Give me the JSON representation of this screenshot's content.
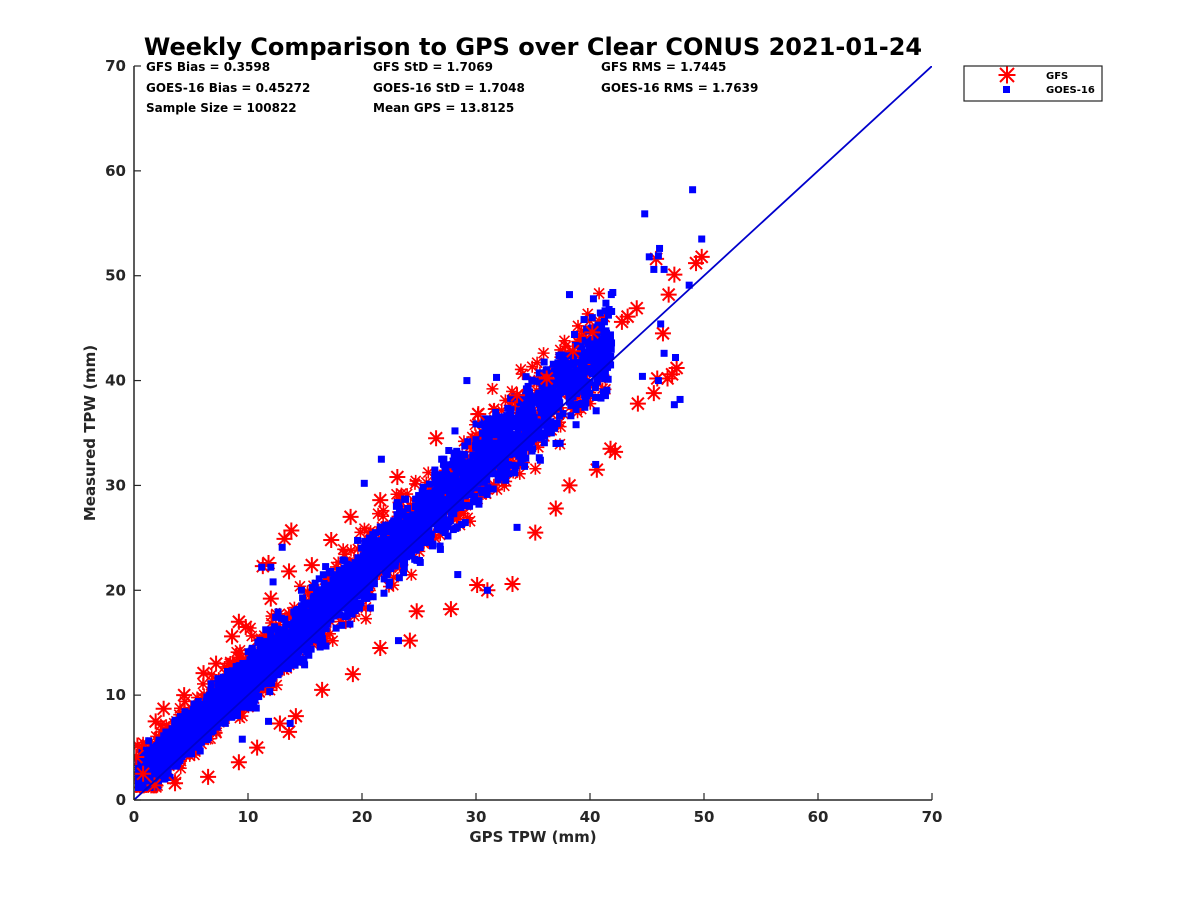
{
  "chart_data": {
    "type": "scatter",
    "title": "Weekly Comparison to GPS over Clear CONUS 2021-01-24",
    "xlabel": "GPS TPW (mm)",
    "ylabel": "Measured TPW (mm)",
    "xlim": [
      0,
      70
    ],
    "ylim": [
      0,
      70
    ],
    "xticks": [
      "0",
      "10",
      "20",
      "30",
      "40",
      "50",
      "60",
      "70"
    ],
    "yticks": [
      "0",
      "10",
      "20",
      "30",
      "40",
      "50",
      "60",
      "70"
    ],
    "grid": false,
    "legend_position": "outside-top-right",
    "stats": [
      [
        "GFS Bias = 0.3598",
        "GFS StD = 1.7069",
        "GFS RMS = 1.7445"
      ],
      [
        "GOES-16 Bias = 0.45272",
        "GOES-16 StD = 1.7048",
        "GOES-16 RMS = 1.7639"
      ],
      [
        "Sample Size = 100822",
        "Mean GPS = 13.8125"
      ]
    ],
    "reference_line": {
      "x": [
        0,
        70
      ],
      "y": [
        0,
        70
      ],
      "color": "#0000cc"
    },
    "series": [
      {
        "name": "GFS",
        "marker": "asterisk",
        "color": "#ff0000",
        "points": [
          [
            13.8,
            25.7
          ],
          [
            13.2,
            24.9
          ],
          [
            13.6,
            21.8
          ],
          [
            11.8,
            22.6
          ],
          [
            11.3,
            22.3
          ],
          [
            12.0,
            19.2
          ],
          [
            9.2,
            17.0
          ],
          [
            9.8,
            16.5
          ],
          [
            8.6,
            15.6
          ],
          [
            7.2,
            13.0
          ],
          [
            6.1,
            12.1
          ],
          [
            4.4,
            10.0
          ],
          [
            2.6,
            8.7
          ],
          [
            1.9,
            7.5
          ],
          [
            0.3,
            5.2
          ],
          [
            0.2,
            4.1
          ],
          [
            0.8,
            2.5
          ],
          [
            1.8,
            1.4
          ],
          [
            3.6,
            1.6
          ],
          [
            6.5,
            2.2
          ],
          [
            9.2,
            3.6
          ],
          [
            10.8,
            5.0
          ],
          [
            12.8,
            7.3
          ],
          [
            13.6,
            6.5
          ],
          [
            14.2,
            8.0
          ],
          [
            16.5,
            10.5
          ],
          [
            19.2,
            12.0
          ],
          [
            21.6,
            14.5
          ],
          [
            24.2,
            15.2
          ],
          [
            24.8,
            18.0
          ],
          [
            27.8,
            18.2
          ],
          [
            30.1,
            20.5
          ],
          [
            31.0,
            20.0
          ],
          [
            33.2,
            20.6
          ],
          [
            35.2,
            25.5
          ],
          [
            37.0,
            27.8
          ],
          [
            38.2,
            30.0
          ],
          [
            40.6,
            31.5
          ],
          [
            42.2,
            33.2
          ],
          [
            41.8,
            33.5
          ],
          [
            44.2,
            37.8
          ],
          [
            45.6,
            38.8
          ],
          [
            47.2,
            40.6
          ],
          [
            47.6,
            41.2
          ],
          [
            46.8,
            40.2
          ],
          [
            45.9,
            40.2
          ],
          [
            46.4,
            44.5
          ],
          [
            49.8,
            51.8
          ],
          [
            49.3,
            51.2
          ],
          [
            47.4,
            50.1
          ],
          [
            46.9,
            48.2
          ],
          [
            45.8,
            51.6
          ],
          [
            44.1,
            46.9
          ],
          [
            43.3,
            46.1
          ],
          [
            42.8,
            45.6
          ],
          [
            40.2,
            44.6
          ],
          [
            38.5,
            42.8
          ],
          [
            36.2,
            40.2
          ],
          [
            33.6,
            38.6
          ],
          [
            30.2,
            36.8
          ],
          [
            26.5,
            34.5
          ],
          [
            23.1,
            30.8
          ],
          [
            21.6,
            28.6
          ],
          [
            19.0,
            27.0
          ],
          [
            17.3,
            24.8
          ],
          [
            15.6,
            22.4
          ]
        ]
      },
      {
        "name": "GOES-16",
        "marker": "square",
        "color": "#0000ff",
        "points": [
          [
            49.0,
            58.2
          ],
          [
            44.8,
            55.9
          ],
          [
            49.8,
            53.5
          ],
          [
            46.1,
            52.6
          ],
          [
            46.0,
            51.9
          ],
          [
            45.2,
            51.8
          ],
          [
            46.5,
            50.6
          ],
          [
            45.6,
            50.6
          ],
          [
            48.7,
            49.1
          ],
          [
            42.0,
            48.4
          ],
          [
            38.2,
            48.2
          ],
          [
            40.3,
            47.8
          ],
          [
            46.2,
            45.4
          ],
          [
            46.5,
            42.6
          ],
          [
            47.5,
            42.2
          ],
          [
            47.9,
            38.2
          ],
          [
            47.4,
            37.7
          ],
          [
            44.6,
            40.4
          ],
          [
            46.0,
            40.0
          ],
          [
            40.5,
            32.0
          ],
          [
            33.6,
            26.0
          ],
          [
            31.0,
            20.0
          ],
          [
            28.4,
            21.5
          ],
          [
            23.2,
            15.2
          ],
          [
            13.7,
            7.3
          ],
          [
            11.8,
            7.5
          ],
          [
            9.5,
            5.8
          ],
          [
            14.2,
            16.5
          ],
          [
            12.2,
            20.8
          ],
          [
            13.0,
            24.1
          ],
          [
            11.2,
            22.2
          ],
          [
            12.0,
            22.2
          ],
          [
            20.2,
            30.2
          ],
          [
            21.7,
            32.5
          ],
          [
            29.2,
            40.0
          ],
          [
            31.8,
            40.3
          ]
        ]
      }
    ]
  }
}
